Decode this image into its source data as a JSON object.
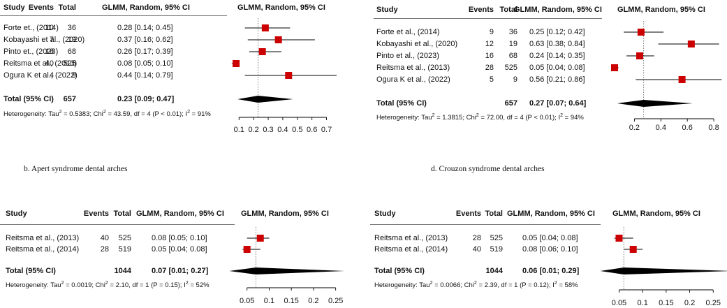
{
  "captions": {
    "b": "b. Apert syndrome dental arches",
    "d": "d. Crouzon syndrome dental arches"
  },
  "headers": {
    "study": "Study",
    "events": "Events",
    "total": "Total",
    "ci": "GLMM, Random, 95% CI",
    "plot": "GLMM, Random, 95% CI"
  },
  "colors": {
    "square": "#cc0000",
    "diamond": "#000000",
    "refline": "#555555"
  },
  "chart_data": [
    {
      "type": "forest",
      "title": "",
      "studies": [
        {
          "study": "Forte et., (2014)",
          "events": 10,
          "total": 36,
          "est": 0.28,
          "lo": 0.14,
          "hi": 0.45,
          "ci_text": "0.28 [0.14; 0.45]"
        },
        {
          "study": "Kobayashi et al., (2020)",
          "events": 7,
          "total": 19,
          "est": 0.37,
          "lo": 0.16,
          "hi": 0.62,
          "ci_text": "0.37 [0.16; 0.62]"
        },
        {
          "study": "Pinto et., (2023)",
          "events": 18,
          "total": 68,
          "est": 0.26,
          "lo": 0.17,
          "hi": 0.39,
          "ci_text": "0.26 [0.17; 0.39]"
        },
        {
          "study": "Reitsma et al., (2013)",
          "events": 40,
          "total": 525,
          "est": 0.08,
          "lo": 0.05,
          "hi": 0.1,
          "ci_text": "0.08 [0.05; 0.10]"
        },
        {
          "study": "Ogura K et al., (2022)",
          "events": 4,
          "total": 9,
          "est": 0.44,
          "lo": 0.14,
          "hi": 0.79,
          "ci_text": "0.44 [0.14; 0.79]"
        }
      ],
      "pooled": {
        "label": "Total (95% CI)",
        "total": 657,
        "est": 0.23,
        "lo": 0.09,
        "hi": 0.47,
        "ci_text": "0.23 [0.09; 0.47]"
      },
      "heterogeneity": "Heterogeneity: Tau² = 0.5383; Chi² = 43.59, df = 4 (P < 0.01); I² = 91%",
      "xlim": [
        0.07,
        0.75
      ],
      "ticks": [
        0.1,
        0.2,
        0.3,
        0.4,
        0.5,
        0.6,
        0.7
      ],
      "tick_labels": [
        "0.1",
        "0.2",
        "0.3",
        "0.4",
        "0.5",
        "0.6",
        "0.7"
      ]
    },
    {
      "type": "forest",
      "title": "",
      "studies": [
        {
          "study": "Forte et al., (2014)",
          "events": 9,
          "total": 36,
          "est": 0.25,
          "lo": 0.12,
          "hi": 0.42,
          "ci_text": "0.25 [0.12; 0.42]"
        },
        {
          "study": "Kobayashi et al., (2020)",
          "events": 12,
          "total": 19,
          "est": 0.63,
          "lo": 0.38,
          "hi": 0.84,
          "ci_text": "0.63 [0.38; 0.84]"
        },
        {
          "study": "Pinto et al., (2023)",
          "events": 16,
          "total": 68,
          "est": 0.24,
          "lo": 0.14,
          "hi": 0.35,
          "ci_text": "0.24 [0.14; 0.35]"
        },
        {
          "study": "Reitsma et al., (2013)",
          "events": 28,
          "total": 525,
          "est": 0.05,
          "lo": 0.04,
          "hi": 0.08,
          "ci_text": "0.05 [0.04; 0.08]"
        },
        {
          "study": "Ogura K et al., (2022)",
          "events": 5,
          "total": 9,
          "est": 0.56,
          "lo": 0.21,
          "hi": 0.86,
          "ci_text": "0.56 [0.21; 0.86]"
        }
      ],
      "pooled": {
        "label": "Total (95% CI)",
        "total": 657,
        "est": 0.27,
        "lo": 0.07,
        "hi": 0.64,
        "ci_text": "0.27 [0.07; 0.64]"
      },
      "heterogeneity": "Heterogeneity: Tau² = 1.3815; Chi² = 72.00, df = 4 (P < 0.01); I² = 94%",
      "xlim": [
        0.05,
        0.9
      ],
      "ticks": [
        0.2,
        0.4,
        0.6,
        0.8
      ],
      "tick_labels": [
        "0.2",
        "0.4",
        "0.6",
        "0.8"
      ]
    },
    {
      "type": "forest",
      "title": "",
      "studies": [
        {
          "study": "Reitsma et al., (2013)",
          "events": 40,
          "total": 525,
          "est": 0.08,
          "lo": 0.05,
          "hi": 0.1,
          "ci_text": "0.08 [0.05; 0.10]"
        },
        {
          "study": "Reitsma et al., (2014)",
          "events": 28,
          "total": 519,
          "est": 0.05,
          "lo": 0.04,
          "hi": 0.08,
          "ci_text": "0.05 [0.04; 0.08]"
        }
      ],
      "pooled": {
        "label": "Total (95% CI)",
        "total": 1044,
        "est": 0.07,
        "lo": 0.01,
        "hi": 0.27,
        "ci_text": "0.07 [0.01; 0.27]"
      },
      "heterogeneity": "Heterogeneity: Tau² = 0.0019; Chi² = 2.10, df = 1 (P = 0.15); I² = 52%",
      "xlim": [
        0.03,
        0.26
      ],
      "ticks": [
        0.05,
        0.1,
        0.15,
        0.2,
        0.25
      ],
      "tick_labels": [
        "0.05",
        "0.1",
        "0.15",
        "0.2",
        "0.25"
      ]
    },
    {
      "type": "forest",
      "title": "",
      "studies": [
        {
          "study": "Reitsma et al., (2013)",
          "events": 28,
          "total": 525,
          "est": 0.05,
          "lo": 0.04,
          "hi": 0.08,
          "ci_text": "0.05 [0.04; 0.08]"
        },
        {
          "study": "Reitsma et al., (2014)",
          "events": 40,
          "total": 519,
          "est": 0.08,
          "lo": 0.06,
          "hi": 0.1,
          "ci_text": "0.08 [0.06; 0.10]"
        }
      ],
      "pooled": {
        "label": "Total (95% CI)",
        "total": 1044,
        "est": 0.06,
        "lo": 0.01,
        "hi": 0.29,
        "ci_text": "0.06 [0.01; 0.29]"
      },
      "heterogeneity": "Heterogeneity: Tau² = 0.0066; Chi² = 2.39, df = 1 (P = 0.12); I² = 58%",
      "xlim": [
        0.03,
        0.26
      ],
      "ticks": [
        0.05,
        0.1,
        0.15,
        0.2,
        0.25
      ],
      "tick_labels": [
        "0.05",
        "0.1",
        "0.15",
        "0.2",
        "0.25"
      ]
    }
  ]
}
